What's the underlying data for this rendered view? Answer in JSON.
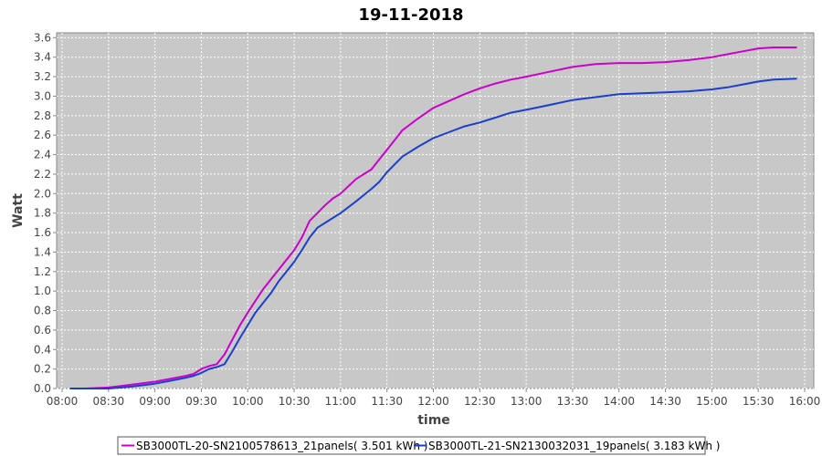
{
  "chart_data": {
    "type": "line",
    "title": "19-11-2018",
    "xlabel": "time",
    "ylabel": "Watt",
    "x_ticks": [
      "08:00",
      "08:30",
      "09:00",
      "09:30",
      "10:00",
      "10:30",
      "11:00",
      "11:30",
      "12:00",
      "12:30",
      "13:00",
      "13:30",
      "14:00",
      "14:30",
      "15:00",
      "15:30",
      "16:00"
    ],
    "y_ticks": [
      "0.0",
      "0.2",
      "0.4",
      "0.6",
      "0.8",
      "1.0",
      "1.2",
      "1.4",
      "1.6",
      "1.8",
      "2.0",
      "2.2",
      "2.4",
      "2.6",
      "2.8",
      "3.0",
      "3.2",
      "3.4",
      "3.6"
    ],
    "xlim": [
      "08:00",
      "16:00"
    ],
    "ylim": [
      0,
      3.65
    ],
    "grid": true,
    "legend_position": "bottom",
    "x": [
      "08:05",
      "08:15",
      "08:30",
      "08:45",
      "09:00",
      "09:10",
      "09:20",
      "09:25",
      "09:30",
      "09:35",
      "09:40",
      "09:45",
      "09:50",
      "09:55",
      "10:00",
      "10:05",
      "10:10",
      "10:15",
      "10:20",
      "10:30",
      "10:35",
      "10:40",
      "10:45",
      "10:50",
      "10:55",
      "11:00",
      "11:10",
      "11:20",
      "11:25",
      "11:30",
      "11:35",
      "11:40",
      "11:50",
      "12:00",
      "12:10",
      "12:20",
      "12:30",
      "12:40",
      "12:50",
      "13:00",
      "13:15",
      "13:30",
      "13:45",
      "14:00",
      "14:15",
      "14:30",
      "14:45",
      "15:00",
      "15:10",
      "15:20",
      "15:30",
      "15:40",
      "15:55"
    ],
    "series": [
      {
        "name": "SB3000TL-20-SN2100578613_21panels( 3.501 kWh )",
        "color": "#cc00cc",
        "values": [
          0.0,
          0.0,
          0.01,
          0.04,
          0.07,
          0.1,
          0.13,
          0.15,
          0.2,
          0.23,
          0.25,
          0.35,
          0.5,
          0.65,
          0.78,
          0.9,
          1.02,
          1.12,
          1.22,
          1.42,
          1.55,
          1.72,
          1.8,
          1.88,
          1.95,
          2.0,
          2.15,
          2.25,
          2.35,
          2.45,
          2.55,
          2.65,
          2.77,
          2.88,
          2.95,
          3.02,
          3.08,
          3.13,
          3.17,
          3.2,
          3.25,
          3.3,
          3.33,
          3.34,
          3.34,
          3.35,
          3.37,
          3.4,
          3.43,
          3.46,
          3.49,
          3.5,
          3.5
        ]
      },
      {
        "name": "SB3000TL-21-SN2130032031_19panels( 3.183 kWh )",
        "color": "#1a3fcc",
        "values": [
          0.0,
          0.0,
          0.0,
          0.02,
          0.05,
          0.08,
          0.11,
          0.13,
          0.16,
          0.2,
          0.22,
          0.25,
          0.38,
          0.52,
          0.65,
          0.78,
          0.88,
          0.98,
          1.1,
          1.3,
          1.42,
          1.55,
          1.65,
          1.7,
          1.75,
          1.8,
          1.92,
          2.05,
          2.12,
          2.22,
          2.3,
          2.38,
          2.48,
          2.57,
          2.63,
          2.69,
          2.73,
          2.78,
          2.83,
          2.86,
          2.91,
          2.96,
          2.99,
          3.02,
          3.03,
          3.04,
          3.05,
          3.07,
          3.09,
          3.12,
          3.15,
          3.17,
          3.18
        ]
      }
    ]
  }
}
